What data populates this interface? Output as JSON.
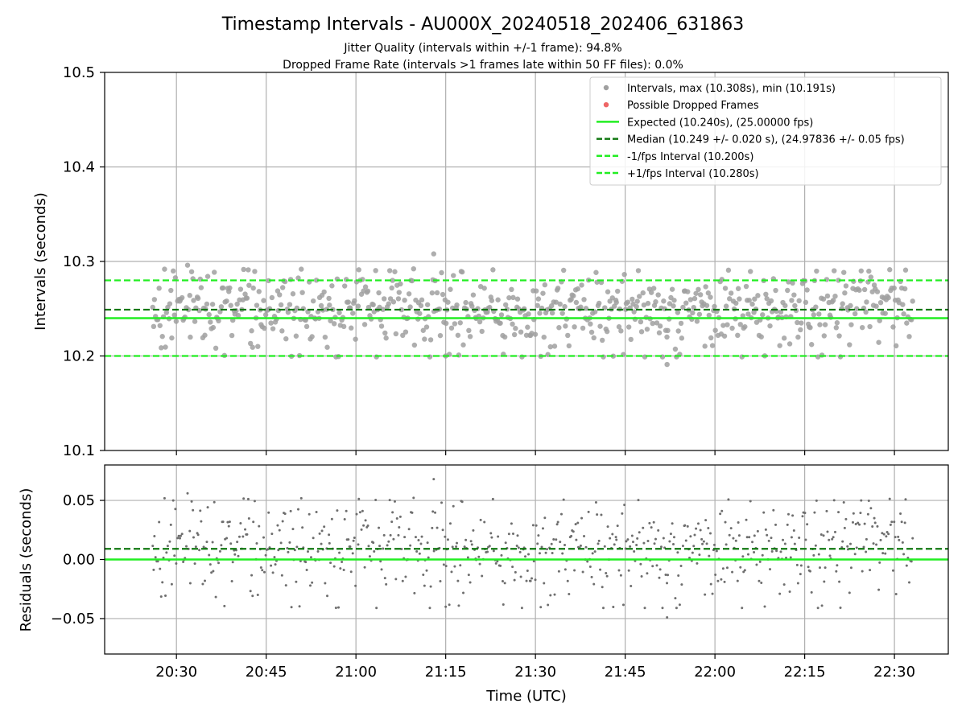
{
  "figure": {
    "title": "Timestamp Intervals - AU000X_20240518_202406_631863",
    "subtitle_1": "Jitter Quality (intervals within +/-1 frame): 94.8%",
    "subtitle_2": "Dropped Frame Rate (intervals >1 frames late within 50 FF files): 0.0%"
  },
  "colors": {
    "points": "#a0a0a0",
    "residual_points": "#6e6e6e",
    "dropped": "#ee6666",
    "expected": "#22ee22",
    "median": "#117711",
    "fps_interval": "#22ee22",
    "grid": "#b0b0b0"
  },
  "chart_data": [
    {
      "type": "scatter",
      "ylabel": "Intervals (seconds)",
      "xlim": [
        "20:18",
        "22:39"
      ],
      "ylim": [
        10.1,
        10.5
      ],
      "y_ticks": [
        "10.1",
        "10.2",
        "10.3",
        "10.4",
        "10.5"
      ],
      "x_ticks": [
        "20:30",
        "20:45",
        "21:00",
        "21:15",
        "21:30",
        "21:45",
        "22:00",
        "22:15",
        "22:30"
      ],
      "grid": true,
      "legend_position": "top-right",
      "legend": [
        {
          "label": "Intervals, max (10.308s), min (10.191s)",
          "style": "marker-gray"
        },
        {
          "label": "Possible Dropped Frames",
          "style": "marker-red"
        },
        {
          "label": "Expected (10.240s), (25.00000 fps)",
          "style": "line-solid-green"
        },
        {
          "label": "Median (10.249 +/- 0.020 s), (24.97836 +/- 0.05 fps)",
          "style": "line-dashed-darkgreen"
        },
        {
          "label": "-1/fps Interval (10.200s)",
          "style": "line-dashed-green"
        },
        {
          "label": "+1/fps Interval (10.280s)",
          "style": "line-dashed-green"
        }
      ],
      "reference_lines": {
        "expected": 10.24,
        "median": 10.249,
        "minus_one_fps": 10.2,
        "plus_one_fps": 10.28
      },
      "series": [
        {
          "name": "Intervals",
          "x_range": [
            "20:26",
            "22:33"
          ],
          "count": 700,
          "y_max": 10.308,
          "y_min": 10.191,
          "y_median": 10.249,
          "y_spread": 0.02,
          "extremes": [
            {
              "x": "21:13",
              "y": 10.308
            },
            {
              "x": "21:52",
              "y": 10.191
            },
            {
              "x": "21:15",
              "y": 10.2
            }
          ]
        }
      ]
    },
    {
      "type": "scatter",
      "ylabel": "Residuals (seconds)",
      "xlabel": "Time (UTC)",
      "xlim": [
        "20:18",
        "22:39"
      ],
      "ylim": [
        -0.08,
        0.08
      ],
      "y_ticks": [
        "−0.05",
        "0.00",
        "0.05"
      ],
      "x_ticks": [
        "20:30",
        "20:45",
        "21:00",
        "21:15",
        "21:30",
        "21:45",
        "22:00",
        "22:15",
        "22:30"
      ],
      "grid": true,
      "reference_lines": {
        "zero": 0.0,
        "median_offset": 0.009
      },
      "series": [
        {
          "name": "Residuals",
          "x_range": [
            "20:26",
            "22:33"
          ],
          "count": 700,
          "y_max": 0.068,
          "y_min": -0.049,
          "y_median": 0.009,
          "y_spread": 0.02
        }
      ]
    }
  ]
}
